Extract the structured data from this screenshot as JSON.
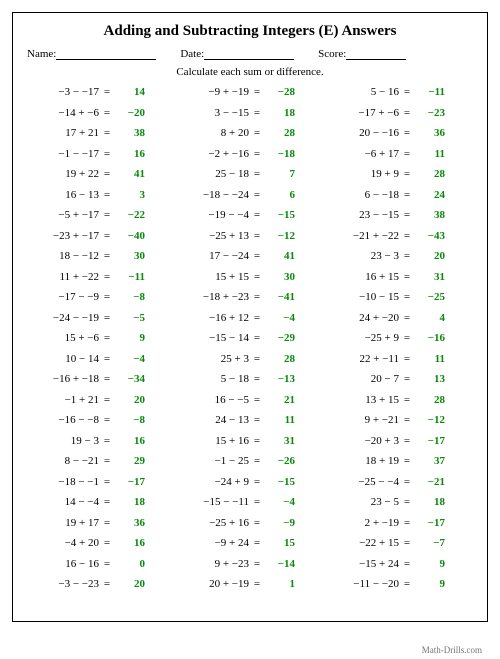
{
  "title": "Adding and Subtracting Integers (E) Answers",
  "header": {
    "name_label": "Name:",
    "date_label": "Date:",
    "score_label": "Score:"
  },
  "instruction": "Calculate each sum or difference.",
  "answer_color": "#0a8a0a",
  "columns": [
    [
      {
        "e": "−3 − −17",
        "a": "14"
      },
      {
        "e": "−14 + −6",
        "a": "−20"
      },
      {
        "e": "17 + 21",
        "a": "38"
      },
      {
        "e": "−1 − −17",
        "a": "16"
      },
      {
        "e": "19 + 22",
        "a": "41"
      },
      {
        "e": "16 − 13",
        "a": "3"
      },
      {
        "e": "−5 + −17",
        "a": "−22"
      },
      {
        "e": "−23 + −17",
        "a": "−40"
      },
      {
        "e": "18 − −12",
        "a": "30"
      },
      {
        "e": "11 + −22",
        "a": "−11"
      },
      {
        "e": "−17 − −9",
        "a": "−8"
      },
      {
        "e": "−24 − −19",
        "a": "−5"
      },
      {
        "e": "15 + −6",
        "a": "9"
      },
      {
        "e": "10 − 14",
        "a": "−4"
      },
      {
        "e": "−16 + −18",
        "a": "−34"
      },
      {
        "e": "−1 + 21",
        "a": "20"
      },
      {
        "e": "−16 − −8",
        "a": "−8"
      },
      {
        "e": "19 − 3",
        "a": "16"
      },
      {
        "e": "8 − −21",
        "a": "29"
      },
      {
        "e": "−18 − −1",
        "a": "−17"
      },
      {
        "e": "14 − −4",
        "a": "18"
      },
      {
        "e": "19 + 17",
        "a": "36"
      },
      {
        "e": "−4 + 20",
        "a": "16"
      },
      {
        "e": "16 − 16",
        "a": "0"
      },
      {
        "e": "−3 − −23",
        "a": "20"
      }
    ],
    [
      {
        "e": "−9 + −19",
        "a": "−28"
      },
      {
        "e": "3 − −15",
        "a": "18"
      },
      {
        "e": "8 + 20",
        "a": "28"
      },
      {
        "e": "−2 + −16",
        "a": "−18"
      },
      {
        "e": "25 − 18",
        "a": "7"
      },
      {
        "e": "−18 − −24",
        "a": "6"
      },
      {
        "e": "−19 − −4",
        "a": "−15"
      },
      {
        "e": "−25 + 13",
        "a": "−12"
      },
      {
        "e": "17 − −24",
        "a": "41"
      },
      {
        "e": "15 + 15",
        "a": "30"
      },
      {
        "e": "−18 + −23",
        "a": "−41"
      },
      {
        "e": "−16 + 12",
        "a": "−4"
      },
      {
        "e": "−15 − 14",
        "a": "−29"
      },
      {
        "e": "25 + 3",
        "a": "28"
      },
      {
        "e": "5 − 18",
        "a": "−13"
      },
      {
        "e": "16 − −5",
        "a": "21"
      },
      {
        "e": "24 − 13",
        "a": "11"
      },
      {
        "e": "15 + 16",
        "a": "31"
      },
      {
        "e": "−1 − 25",
        "a": "−26"
      },
      {
        "e": "−24 + 9",
        "a": "−15"
      },
      {
        "e": "−15 − −11",
        "a": "−4"
      },
      {
        "e": "−25 + 16",
        "a": "−9"
      },
      {
        "e": "−9 + 24",
        "a": "15"
      },
      {
        "e": "9 + −23",
        "a": "−14"
      },
      {
        "e": "20 + −19",
        "a": "1"
      }
    ],
    [
      {
        "e": "5 − 16",
        "a": "−11"
      },
      {
        "e": "−17 + −6",
        "a": "−23"
      },
      {
        "e": "20 − −16",
        "a": "36"
      },
      {
        "e": "−6 + 17",
        "a": "11"
      },
      {
        "e": "19 + 9",
        "a": "28"
      },
      {
        "e": "6 − −18",
        "a": "24"
      },
      {
        "e": "23 − −15",
        "a": "38"
      },
      {
        "e": "−21 + −22",
        "a": "−43"
      },
      {
        "e": "23 − 3",
        "a": "20"
      },
      {
        "e": "16 + 15",
        "a": "31"
      },
      {
        "e": "−10 − 15",
        "a": "−25"
      },
      {
        "e": "24 + −20",
        "a": "4"
      },
      {
        "e": "−25 + 9",
        "a": "−16"
      },
      {
        "e": "22 + −11",
        "a": "11"
      },
      {
        "e": "20 − 7",
        "a": "13"
      },
      {
        "e": "13 + 15",
        "a": "28"
      },
      {
        "e": "9 + −21",
        "a": "−12"
      },
      {
        "e": "−20 + 3",
        "a": "−17"
      },
      {
        "e": "18 + 19",
        "a": "37"
      },
      {
        "e": "−25 − −4",
        "a": "−21"
      },
      {
        "e": "23 − 5",
        "a": "18"
      },
      {
        "e": "2 + −19",
        "a": "−17"
      },
      {
        "e": "−22 + 15",
        "a": "−7"
      },
      {
        "e": "−15 + 24",
        "a": "9"
      },
      {
        "e": "−11 − −20",
        "a": "9"
      }
    ]
  ],
  "footer": "Math-Drills.com"
}
